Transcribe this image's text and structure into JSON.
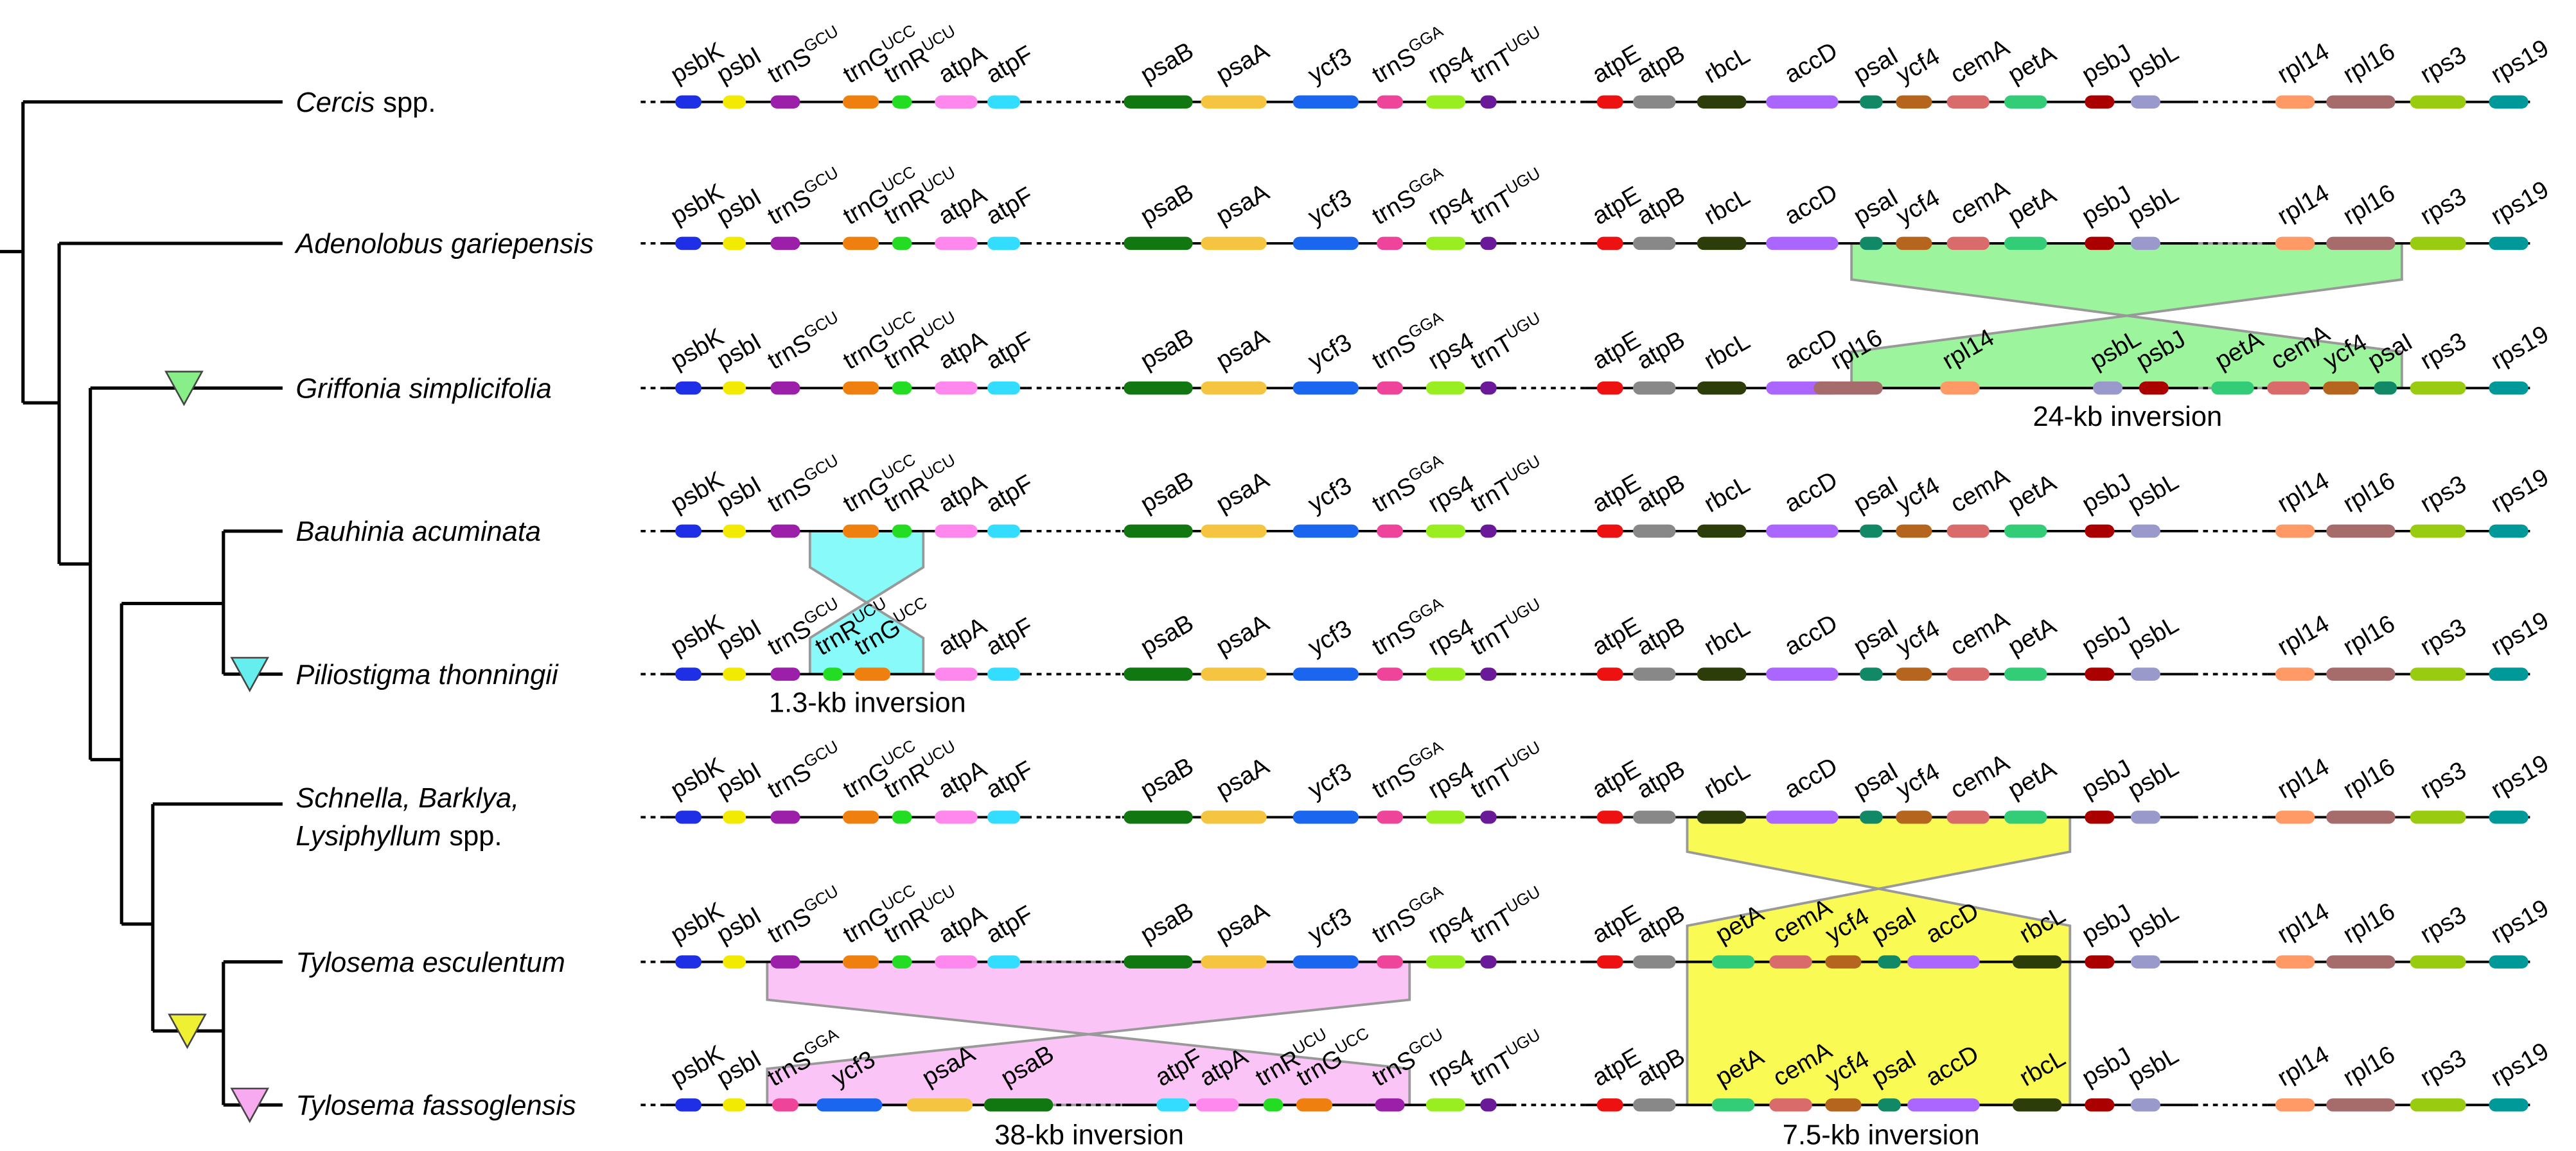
{
  "taxa": [
    {
      "name": "Cercis",
      "suffix": "spp."
    },
    {
      "name": "Adenolobus gariepensis"
    },
    {
      "name": "Griffonia simplicifolia"
    },
    {
      "name": "Bauhinia acuminata"
    },
    {
      "name": "Piliostigma thonningii"
    },
    {
      "name": "Schnella, Barklya,",
      "name2": "Lysiphyllum",
      "suffix": "spp."
    },
    {
      "name": "Tylosema esculentum"
    },
    {
      "name": "Tylosema fassoglensis"
    }
  ],
  "tracks": [
    {
      "genes": [
        "psbK",
        "psbI",
        [
          "trnS",
          "GCU"
        ],
        [
          "trnG",
          "UCC"
        ],
        [
          "trnR",
          "UCU"
        ],
        "atpA",
        "atpF",
        "psaB",
        "psaA",
        "ycf3",
        [
          "trnS",
          "GGA"
        ],
        "rps4",
        [
          "trnT",
          "UGU"
        ],
        "atpE",
        "atpB",
        "rbcL",
        "accD",
        "psaI",
        "ycf4",
        "cemA",
        "petA",
        "psbJ",
        "psbL",
        "rpl14",
        "rpl16",
        "rps3",
        "rps19"
      ]
    },
    {
      "genes": [
        "psbK",
        "psbI",
        [
          "trnS",
          "GCU"
        ],
        [
          "trnG",
          "UCC"
        ],
        [
          "trnR",
          "UCU"
        ],
        "atpA",
        "atpF",
        "psaB",
        "psaA",
        "ycf3",
        [
          "trnS",
          "GGA"
        ],
        "rps4",
        [
          "trnT",
          "UGU"
        ],
        "atpE",
        "atpB",
        "rbcL",
        "accD",
        "psaI",
        "ycf4",
        "cemA",
        "petA",
        "psbJ",
        "psbL",
        "rpl14",
        "rpl16",
        "rps3",
        "rps19"
      ]
    },
    {
      "genes": [
        "psbK",
        "psbI",
        [
          "trnS",
          "GCU"
        ],
        [
          "trnG",
          "UCC"
        ],
        [
          "trnR",
          "UCU"
        ],
        "atpA",
        "atpF",
        "psaB",
        "psaA",
        "ycf3",
        [
          "trnS",
          "GGA"
        ],
        "rps4",
        [
          "trnT",
          "UGU"
        ],
        "atpE",
        "atpB",
        "rbcL",
        "accD",
        "rpl16",
        "rpl14",
        "psbL",
        "psbJ",
        "petA",
        "cemA",
        "ycf4",
        "psaI",
        "rps3",
        "rps19"
      ]
    },
    {
      "genes": [
        "psbK",
        "psbI",
        [
          "trnS",
          "GCU"
        ],
        [
          "trnG",
          "UCC"
        ],
        [
          "trnR",
          "UCU"
        ],
        "atpA",
        "atpF",
        "psaB",
        "psaA",
        "ycf3",
        [
          "trnS",
          "GGA"
        ],
        "rps4",
        [
          "trnT",
          "UGU"
        ],
        "atpE",
        "atpB",
        "rbcL",
        "accD",
        "psaI",
        "ycf4",
        "cemA",
        "petA",
        "psbJ",
        "psbL",
        "rpl14",
        "rpl16",
        "rps3",
        "rps19"
      ]
    },
    {
      "genes": [
        "psbK",
        "psbI",
        [
          "trnS",
          "GCU"
        ],
        [
          "trnR",
          "UCU"
        ],
        [
          "trnG",
          "UCC"
        ],
        "atpA",
        "atpF",
        "psaB",
        "psaA",
        "ycf3",
        [
          "trnS",
          "GGA"
        ],
        "rps4",
        [
          "trnT",
          "UGU"
        ],
        "atpE",
        "atpB",
        "rbcL",
        "accD",
        "psaI",
        "ycf4",
        "cemA",
        "petA",
        "psbJ",
        "psbL",
        "rpl14",
        "rpl16",
        "rps3",
        "rps19"
      ]
    },
    {
      "genes": [
        "psbK",
        "psbI",
        [
          "trnS",
          "GCU"
        ],
        [
          "trnG",
          "UCC"
        ],
        [
          "trnR",
          "UCU"
        ],
        "atpA",
        "atpF",
        "psaB",
        "psaA",
        "ycf3",
        [
          "trnS",
          "GGA"
        ],
        "rps4",
        [
          "trnT",
          "UGU"
        ],
        "atpE",
        "atpB",
        "rbcL",
        "accD",
        "psaI",
        "ycf4",
        "cemA",
        "petA",
        "psbJ",
        "psbL",
        "rpl14",
        "rpl16",
        "rps3",
        "rps19"
      ]
    },
    {
      "genes": [
        "psbK",
        "psbI",
        [
          "trnS",
          "GCU"
        ],
        [
          "trnG",
          "UCC"
        ],
        [
          "trnR",
          "UCU"
        ],
        "atpA",
        "atpF",
        "psaB",
        "psaA",
        "ycf3",
        [
          "trnS",
          "GGA"
        ],
        "rps4",
        [
          "trnT",
          "UGU"
        ],
        "atpE",
        "atpB",
        "petA",
        "cemA",
        "ycf4",
        "psaI",
        "accD",
        "rbcL",
        "psbJ",
        "psbL",
        "rpl14",
        "rpl16",
        "rps3",
        "rps19"
      ]
    },
    {
      "genes": [
        "psbK",
        "psbI",
        [
          "trnS",
          "GGA"
        ],
        "ycf3",
        "psaA",
        "psaB",
        "atpF",
        "atpA",
        [
          "trnR",
          "UCU"
        ],
        [
          "trnG",
          "UCC"
        ],
        [
          "trnS",
          "GCU"
        ],
        "rps4",
        [
          "trnT",
          "UGU"
        ],
        "atpE",
        "atpB",
        "petA",
        "cemA",
        "ycf4",
        "psaI",
        "accD",
        "rbcL",
        "psbJ",
        "psbL",
        "rpl14",
        "rpl16",
        "rps3",
        "rps19"
      ]
    }
  ],
  "inversions": [
    "24-kb inversion",
    "1.3-kb inversion",
    "38-kb inversion",
    "7.5-kb inversion"
  ]
}
